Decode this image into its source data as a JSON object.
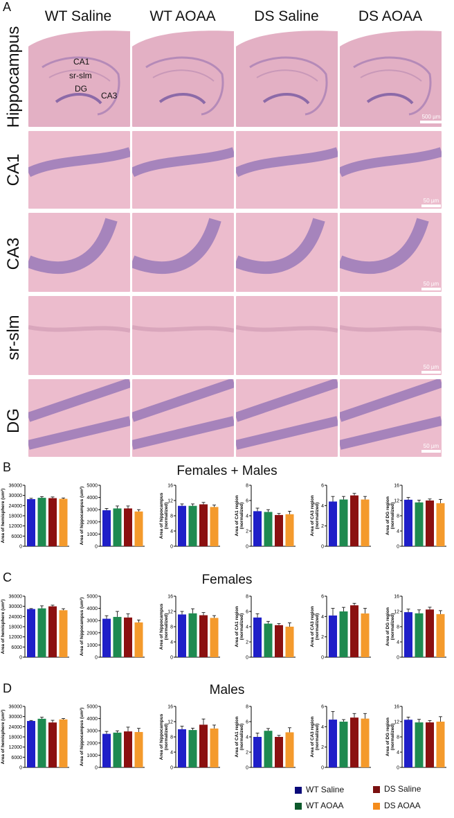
{
  "panels": {
    "A": "A",
    "B": "B",
    "C": "C",
    "D": "D"
  },
  "columns": [
    "WT Saline",
    "WT AOAA",
    "DS Saline",
    "DS AOAA"
  ],
  "rows": [
    "Hippocampus",
    "CA1",
    "CA3",
    "sr-slm",
    "DG"
  ],
  "hippo_labels": {
    "ca1": "CA1",
    "srslm": "sr-slm",
    "dg": "DG",
    "ca3": "CA3"
  },
  "scalebars": {
    "hippo": "500 µm",
    "ca1": "50 µm",
    "ca3": "50 µm",
    "srslm": "50 µm",
    "dg": "50 µm"
  },
  "sections": {
    "B": "Females + Males",
    "C": "Females",
    "D": "Males"
  },
  "colors": {
    "wt_saline": "#1f1fc8",
    "wt_aoaa": "#1e8a50",
    "ds_saline": "#8b1010",
    "ds_aoaa": "#f49a2c",
    "tissue": "#e8b8c8",
    "cells": "#9a7ab8"
  },
  "legend": [
    {
      "label": "WT Saline",
      "color": "#0a0a7a"
    },
    {
      "label": "DS Saline",
      "color": "#7a1010"
    },
    {
      "label": "WT AOAA",
      "color": "#0d5a2c"
    },
    {
      "label": "DS AOAA",
      "color": "#f48c1c"
    }
  ],
  "chart_data": [
    {
      "type": "bar",
      "section": "Females + Males",
      "ylabel": "Area of hemisphere (um²)",
      "ylim": [
        0,
        36000
      ],
      "ticks": [
        0,
        6000,
        12000,
        18000,
        24000,
        30000,
        36000
      ],
      "categories": [
        "WT Saline",
        "WT AOAA",
        "DS Saline",
        "DS AOAA"
      ],
      "values": [
        27800,
        28600,
        28400,
        28000
      ],
      "errors": [
        500,
        700,
        700,
        500
      ]
    },
    {
      "type": "bar",
      "section": "Females + Males",
      "ylabel": "Area of hippocampus (um²)",
      "ylim": [
        0,
        5000
      ],
      "ticks": [
        0,
        1000,
        2000,
        3000,
        4000,
        5000
      ],
      "categories": [
        "WT Saline",
        "WT AOAA",
        "DS Saline",
        "DS AOAA"
      ],
      "values": [
        2950,
        3100,
        3100,
        2850
      ],
      "errors": [
        150,
        200,
        200,
        150
      ]
    },
    {
      "type": "bar",
      "section": "Females + Males",
      "ylabel": "Area of hippocampus (normalized)",
      "ylim": [
        0,
        16
      ],
      "ticks": [
        0,
        4,
        8,
        12,
        16
      ],
      "categories": [
        "WT Saline",
        "WT AOAA",
        "DS Saline",
        "DS AOAA"
      ],
      "values": [
        10.6,
        10.6,
        11.0,
        10.3
      ],
      "errors": [
        0.5,
        0.5,
        0.5,
        0.5
      ]
    },
    {
      "type": "bar",
      "section": "Females + Males",
      "ylabel": "Area of CA1 region (normalized)",
      "ylim": [
        0,
        8
      ],
      "ticks": [
        0,
        2,
        4,
        6,
        8
      ],
      "categories": [
        "WT Saline",
        "WT AOAA",
        "DS Saline",
        "DS AOAA"
      ],
      "values": [
        4.6,
        4.5,
        4.1,
        4.2
      ],
      "errors": [
        0.4,
        0.3,
        0.2,
        0.4
      ]
    },
    {
      "type": "bar",
      "section": "Females + Males",
      "ylabel": "Area of CA3 region (normalized)",
      "ylim": [
        0,
        6
      ],
      "ticks": [
        0,
        2,
        4,
        6
      ],
      "categories": [
        "WT Saline",
        "WT AOAA",
        "DS Saline",
        "DS AOAA"
      ],
      "values": [
        4.4,
        4.6,
        5.0,
        4.6
      ],
      "errors": [
        0.5,
        0.3,
        0.2,
        0.3
      ]
    },
    {
      "type": "bar",
      "section": "Females + Males",
      "ylabel": "Area of DG region (normalized)",
      "ylim": [
        0,
        16
      ],
      "ticks": [
        0,
        4,
        8,
        12,
        16
      ],
      "categories": [
        "WT Saline",
        "WT AOAA",
        "DS Saline",
        "DS AOAA"
      ],
      "values": [
        12.2,
        11.5,
        12.0,
        11.3
      ],
      "errors": [
        0.6,
        0.6,
        0.4,
        1.0
      ]
    },
    {
      "type": "bar",
      "section": "Females",
      "ylabel": "Area of hemisphere (um²)",
      "ylim": [
        0,
        36000
      ],
      "ticks": [
        0,
        6000,
        12000,
        18000,
        24000,
        30000,
        36000
      ],
      "categories": [
        "WT Saline",
        "WT AOAA",
        "DS Saline",
        "DS AOAA"
      ],
      "values": [
        28400,
        28800,
        30000,
        27700
      ],
      "errors": [
        300,
        1500,
        700,
        900
      ]
    },
    {
      "type": "bar",
      "section": "Females",
      "ylabel": "Area of hippocampus (um²)",
      "ylim": [
        0,
        5000
      ],
      "ticks": [
        0,
        1000,
        2000,
        3000,
        4000,
        5000
      ],
      "categories": [
        "WT Saline",
        "WT AOAA",
        "DS Saline",
        "DS AOAA"
      ],
      "values": [
        3150,
        3300,
        3250,
        2850
      ],
      "errors": [
        250,
        450,
        300,
        200
      ]
    },
    {
      "type": "bar",
      "section": "Females",
      "ylabel": "Area of hippocampus (normalized)",
      "ylim": [
        0,
        16
      ],
      "ticks": [
        0,
        4,
        8,
        12,
        16
      ],
      "categories": [
        "WT Saline",
        "WT AOAA",
        "DS Saline",
        "DS AOAA"
      ],
      "values": [
        11.2,
        11.5,
        11.0,
        10.3
      ],
      "errors": [
        0.8,
        1.2,
        0.7,
        0.6
      ]
    },
    {
      "type": "bar",
      "section": "Females",
      "ylabel": "Area of CA1 region (normalized)",
      "ylim": [
        0,
        8
      ],
      "ticks": [
        0,
        2,
        4,
        6,
        8
      ],
      "categories": [
        "WT Saline",
        "WT AOAA",
        "DS Saline",
        "DS AOAA"
      ],
      "values": [
        5.2,
        4.4,
        4.2,
        4.0
      ],
      "errors": [
        0.5,
        0.3,
        0.2,
        0.5
      ]
    },
    {
      "type": "bar",
      "section": "Females",
      "ylabel": "Area of CA3 region (normalized)",
      "ylim": [
        0,
        6
      ],
      "ticks": [
        0,
        2,
        4,
        6
      ],
      "categories": [
        "WT Saline",
        "WT AOAA",
        "DS Saline",
        "DS AOAA"
      ],
      "values": [
        4.1,
        4.5,
        5.1,
        4.3
      ],
      "errors": [
        0.7,
        0.4,
        0.2,
        0.5
      ]
    },
    {
      "type": "bar",
      "section": "Females",
      "ylabel": "Area of DG region (normalized)",
      "ylim": [
        0,
        16
      ],
      "ticks": [
        0,
        4,
        8,
        12,
        16
      ],
      "categories": [
        "WT Saline",
        "WT AOAA",
        "DS Saline",
        "DS AOAA"
      ],
      "values": [
        11.8,
        11.5,
        12.5,
        11.3
      ],
      "errors": [
        0.8,
        0.9,
        0.6,
        0.9
      ]
    },
    {
      "type": "bar",
      "section": "Males",
      "ylabel": "Area of hemisphere (um²)",
      "ylim": [
        0,
        36000
      ],
      "ticks": [
        0,
        6000,
        12000,
        18000,
        24000,
        30000,
        36000
      ],
      "categories": [
        "WT Saline",
        "WT AOAA",
        "DS Saline",
        "DS AOAA"
      ],
      "values": [
        27400,
        28700,
        26500,
        28300
      ],
      "errors": [
        300,
        900,
        1300,
        500
      ]
    },
    {
      "type": "bar",
      "section": "Males",
      "ylabel": "Area of hippocampus (um²)",
      "ylim": [
        0,
        5000
      ],
      "ticks": [
        0,
        1000,
        2000,
        3000,
        4000,
        5000
      ],
      "categories": [
        "WT Saline",
        "WT AOAA",
        "DS Saline",
        "DS AOAA"
      ],
      "values": [
        2750,
        2850,
        2950,
        2900
      ],
      "errors": [
        200,
        150,
        350,
        300
      ]
    },
    {
      "type": "bar",
      "section": "Males",
      "ylabel": "Area of hippocampus (normalized)",
      "ylim": [
        0,
        16
      ],
      "ticks": [
        0,
        4,
        8,
        12,
        16
      ],
      "categories": [
        "WT Saline",
        "WT AOAA",
        "DS Saline",
        "DS AOAA"
      ],
      "values": [
        10.0,
        9.8,
        11.2,
        10.2
      ],
      "errors": [
        0.8,
        0.5,
        1.5,
        0.9
      ]
    },
    {
      "type": "bar",
      "section": "Males",
      "ylabel": "Area of CA1 region (normalized)",
      "ylim": [
        0,
        8
      ],
      "ticks": [
        0,
        2,
        4,
        6,
        8
      ],
      "categories": [
        "WT Saline",
        "WT AOAA",
        "DS Saline",
        "DS AOAA"
      ],
      "values": [
        4.0,
        4.8,
        4.0,
        4.6
      ],
      "errors": [
        0.5,
        0.3,
        0.2,
        0.6
      ]
    },
    {
      "type": "bar",
      "section": "Males",
      "ylabel": "Area of CA3 region (normalized)",
      "ylim": [
        0,
        6
      ],
      "ticks": [
        0,
        2,
        4,
        6
      ],
      "categories": [
        "WT Saline",
        "WT AOAA",
        "DS Saline",
        "DS AOAA"
      ],
      "values": [
        4.7,
        4.5,
        4.9,
        4.8
      ],
      "errors": [
        0.8,
        0.2,
        0.4,
        0.5
      ]
    },
    {
      "type": "bar",
      "section": "Males",
      "ylabel": "Area of DG region (normalized)",
      "ylim": [
        0,
        16
      ],
      "ticks": [
        0,
        4,
        8,
        12,
        16
      ],
      "categories": [
        "WT Saline",
        "WT AOAA",
        "DS Saline",
        "DS AOAA"
      ],
      "values": [
        12.5,
        11.8,
        11.8,
        12.0
      ],
      "errors": [
        0.7,
        0.8,
        0.5,
        1.3
      ]
    }
  ]
}
